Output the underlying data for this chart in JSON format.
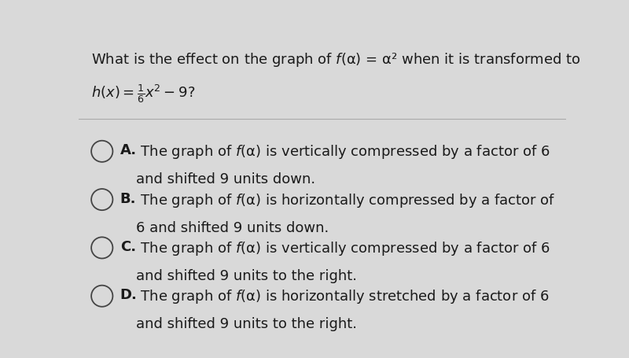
{
  "background_color": "#d9d9d9",
  "text_color": "#1a1a1a",
  "separator_color": "#aaaaaa",
  "title_fontsize": 13.0,
  "option_fontsize": 13.0,
  "options": [
    {
      "label": "A.",
      "line1": " The graph of ƒ(α) is vertically compressed by a factor of 6",
      "line2": "and shifted 9 units down."
    },
    {
      "label": "B.",
      "line1": " The graph of ƒ(α) is horizontally compressed by a factor of",
      "line2": "6 and shifted 9 units down."
    },
    {
      "label": "C.",
      "line1": " The graph of ƒ(α) is vertically compressed by a factor of 6",
      "line2": "and shifted 9 units to the right."
    },
    {
      "label": "D.",
      "line1": " The graph of ƒ(α) is horizontally stretched by a factor of 6",
      "line2": "and shifted 9 units to the right."
    }
  ]
}
